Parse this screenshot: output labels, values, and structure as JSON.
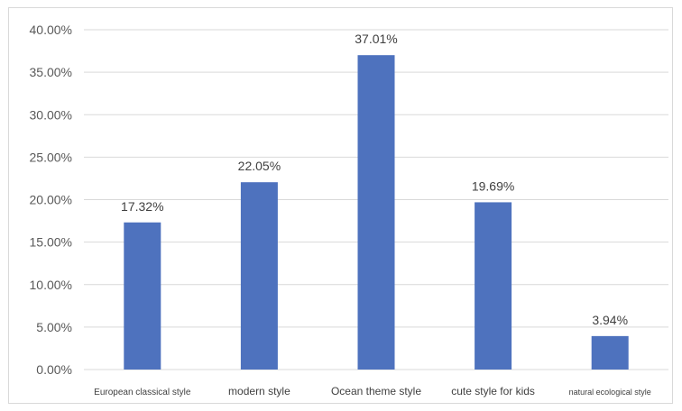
{
  "chart_data": {
    "type": "bar",
    "title": "",
    "xlabel": "",
    "ylabel": "",
    "categories": [
      "European classical style",
      "modern style",
      "Ocean theme style",
      "cute style for kids",
      "natural ecological style"
    ],
    "values": [
      17.32,
      22.05,
      37.01,
      19.69,
      3.94
    ],
    "data_labels": [
      "17.32%",
      "22.05%",
      "37.01%",
      "19.69%",
      "3.94%"
    ],
    "ylim": [
      0,
      40
    ],
    "y_ticks": [
      0,
      5,
      10,
      15,
      20,
      25,
      30,
      35,
      40
    ],
    "y_tick_labels": [
      "0.00%",
      "5.00%",
      "10.00%",
      "15.00%",
      "20.00%",
      "25.00%",
      "30.00%",
      "35.00%",
      "40.00%"
    ],
    "grid": true,
    "legend": "none",
    "bar_color": "#4e72be"
  }
}
